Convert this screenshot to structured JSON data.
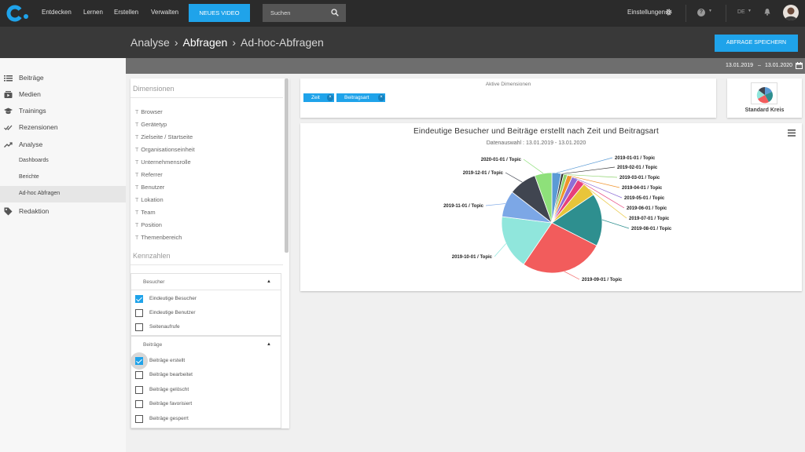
{
  "topnav": {
    "links": [
      "Entdecken",
      "Lernen",
      "Erstellen",
      "Verwalten"
    ],
    "new_video": "NEUES VIDEO",
    "search_placeholder": "Suchen",
    "settings": "Einstellungen",
    "language": "DE"
  },
  "breadcrumb": {
    "part1": "Analyse",
    "part2": "Abfragen",
    "part3": "Ad-hoc-Abfragen"
  },
  "save_button": "ABFRAGE SPEICHERN",
  "daterange": {
    "from": "13.01.2019",
    "sep": "–",
    "to": "13.01.2020"
  },
  "sidebar": {
    "items": [
      {
        "label": "Beiträge",
        "icon": "list-icon"
      },
      {
        "label": "Medien",
        "icon": "media-icon"
      },
      {
        "label": "Trainings",
        "icon": "graduation-cap-icon"
      },
      {
        "label": "Rezensionen",
        "icon": "checkmarks-icon"
      },
      {
        "label": "Analyse",
        "icon": "trend-icon"
      },
      {
        "label": "Dashboards"
      },
      {
        "label": "Berichte"
      },
      {
        "label": "Ad-hoc Abfragen"
      },
      {
        "label": "Redaktion",
        "icon": "tag-icon"
      }
    ]
  },
  "dimensions": {
    "heading": "Dimensionen",
    "items": [
      "Browser",
      "Gerätetyp",
      "Zielseite / Startseite",
      "Organisationseinheit",
      "Unternehmensrolle",
      "Referrer",
      "Benutzer",
      "Lokation",
      "Team",
      "Position",
      "Themenbereich"
    ],
    "type_glyph": "T"
  },
  "metrics": {
    "heading": "Kennzahlen",
    "groups": [
      {
        "title": "Besucher",
        "items": [
          {
            "label": "Eindeutige Besucher",
            "checked": true
          },
          {
            "label": "Eindeutige Benutzer",
            "checked": false
          },
          {
            "label": "Seitenaufrufe",
            "checked": false
          }
        ]
      },
      {
        "title": "Beiträge",
        "items": [
          {
            "label": "Beiträge erstellt",
            "checked": true
          },
          {
            "label": "Beiträge bearbeitet",
            "checked": false
          },
          {
            "label": "Beiträge gelöscht",
            "checked": false
          },
          {
            "label": "Beiträge favorisiert",
            "checked": false
          },
          {
            "label": "Beiträge gesperrt",
            "checked": false
          }
        ]
      }
    ]
  },
  "active_dimensions": {
    "title": "Aktive Dimensionen",
    "chips": [
      "Zeit",
      "Beitragsart"
    ]
  },
  "chart_type": {
    "label": "Standard Kreis"
  },
  "colors": {
    "accent": "#1fa3ea",
    "topbar": "#2b2b2b"
  },
  "chart_data": {
    "type": "pie",
    "title": "Eindeutige Besucher und Beiträge erstellt nach Zeit und Beitragsart",
    "subtitle": "Datenauswahl : 13.01.2019 - 13.01.2020",
    "slices": [
      {
        "label": "2019-01-01 / Topic",
        "value": 3.0,
        "color": "#5b9bd5"
      },
      {
        "label": "2019-02-01 / Topic",
        "value": 0.8,
        "color": "#333333"
      },
      {
        "label": "2019-03-01 / Topic",
        "value": 1.2,
        "color": "#8fd36e"
      },
      {
        "label": "2019-04-01 / Topic",
        "value": 1.6,
        "color": "#f0932b"
      },
      {
        "label": "2019-05-01 / Topic",
        "value": 2.0,
        "color": "#8e6fd6"
      },
      {
        "label": "2019-06-01 / Topic",
        "value": 2.4,
        "color": "#e7407a"
      },
      {
        "label": "2019-07-01 / Topic",
        "value": 4.5,
        "color": "#e8c53a"
      },
      {
        "label": "2019-08-01 / Topic",
        "value": 17.0,
        "color": "#2e8f8f"
      },
      {
        "label": "2019-09-01 / Topic",
        "value": 27.0,
        "color": "#f25c5c"
      },
      {
        "label": "2019-10-01 / Topic",
        "value": 17.5,
        "color": "#90e6dc"
      },
      {
        "label": "2019-11-01 / Topic",
        "value": 8.5,
        "color": "#7ca7e6"
      },
      {
        "label": "2019-12-01 / Topic",
        "value": 9.0,
        "color": "#404550"
      },
      {
        "label": "2020-01-01 / Topic",
        "value": 5.5,
        "color": "#8ee07a"
      }
    ]
  }
}
